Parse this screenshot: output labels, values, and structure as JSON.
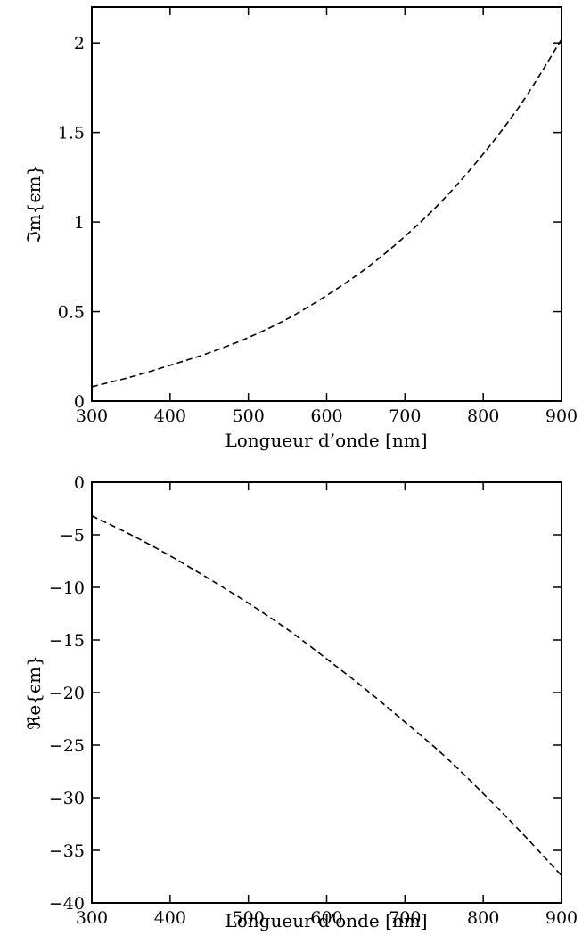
{
  "chart_data": [
    {
      "type": "line",
      "xlabel": "Longueur d’onde [nm]",
      "ylabel": "ℑm{ϵm}",
      "xlim": [
        300,
        900
      ],
      "ylim": [
        0,
        2.2
      ],
      "xticks": [
        "300",
        "400",
        "500",
        "600",
        "700",
        "800",
        "900"
      ],
      "yticks": [
        "0",
        "0.5",
        "1",
        "1.5",
        "2"
      ],
      "grid": false,
      "series": [
        {
          "line_style": "dashed",
          "color": "#000000",
          "x": [
            300,
            350,
            400,
            450,
            500,
            550,
            600,
            650,
            700,
            750,
            800,
            850,
            900
          ],
          "y": [
            0.08,
            0.135,
            0.2,
            0.27,
            0.355,
            0.46,
            0.59,
            0.74,
            0.92,
            1.13,
            1.38,
            1.67,
            2.02
          ]
        }
      ]
    },
    {
      "type": "line",
      "xlabel": "Longueur d’onde [nm]",
      "ylabel": "ℜe{ϵm}",
      "xlim": [
        300,
        900
      ],
      "ylim": [
        -40,
        0
      ],
      "xticks": [
        "300",
        "400",
        "500",
        "600",
        "700",
        "800",
        "900"
      ],
      "yticks": [
        "0",
        "−5",
        "−10",
        "−15",
        "−20",
        "−25",
        "−30",
        "−35",
        "−40"
      ],
      "grid": false,
      "series": [
        {
          "line_style": "dashed",
          "color": "#000000",
          "x": [
            300,
            350,
            400,
            450,
            500,
            550,
            600,
            650,
            700,
            750,
            800,
            850,
            900
          ],
          "y": [
            -3.2,
            -5.0,
            -7.0,
            -9.2,
            -11.5,
            -14.0,
            -16.8,
            -19.7,
            -22.8,
            -26.0,
            -29.6,
            -33.4,
            -37.4
          ]
        }
      ]
    }
  ]
}
